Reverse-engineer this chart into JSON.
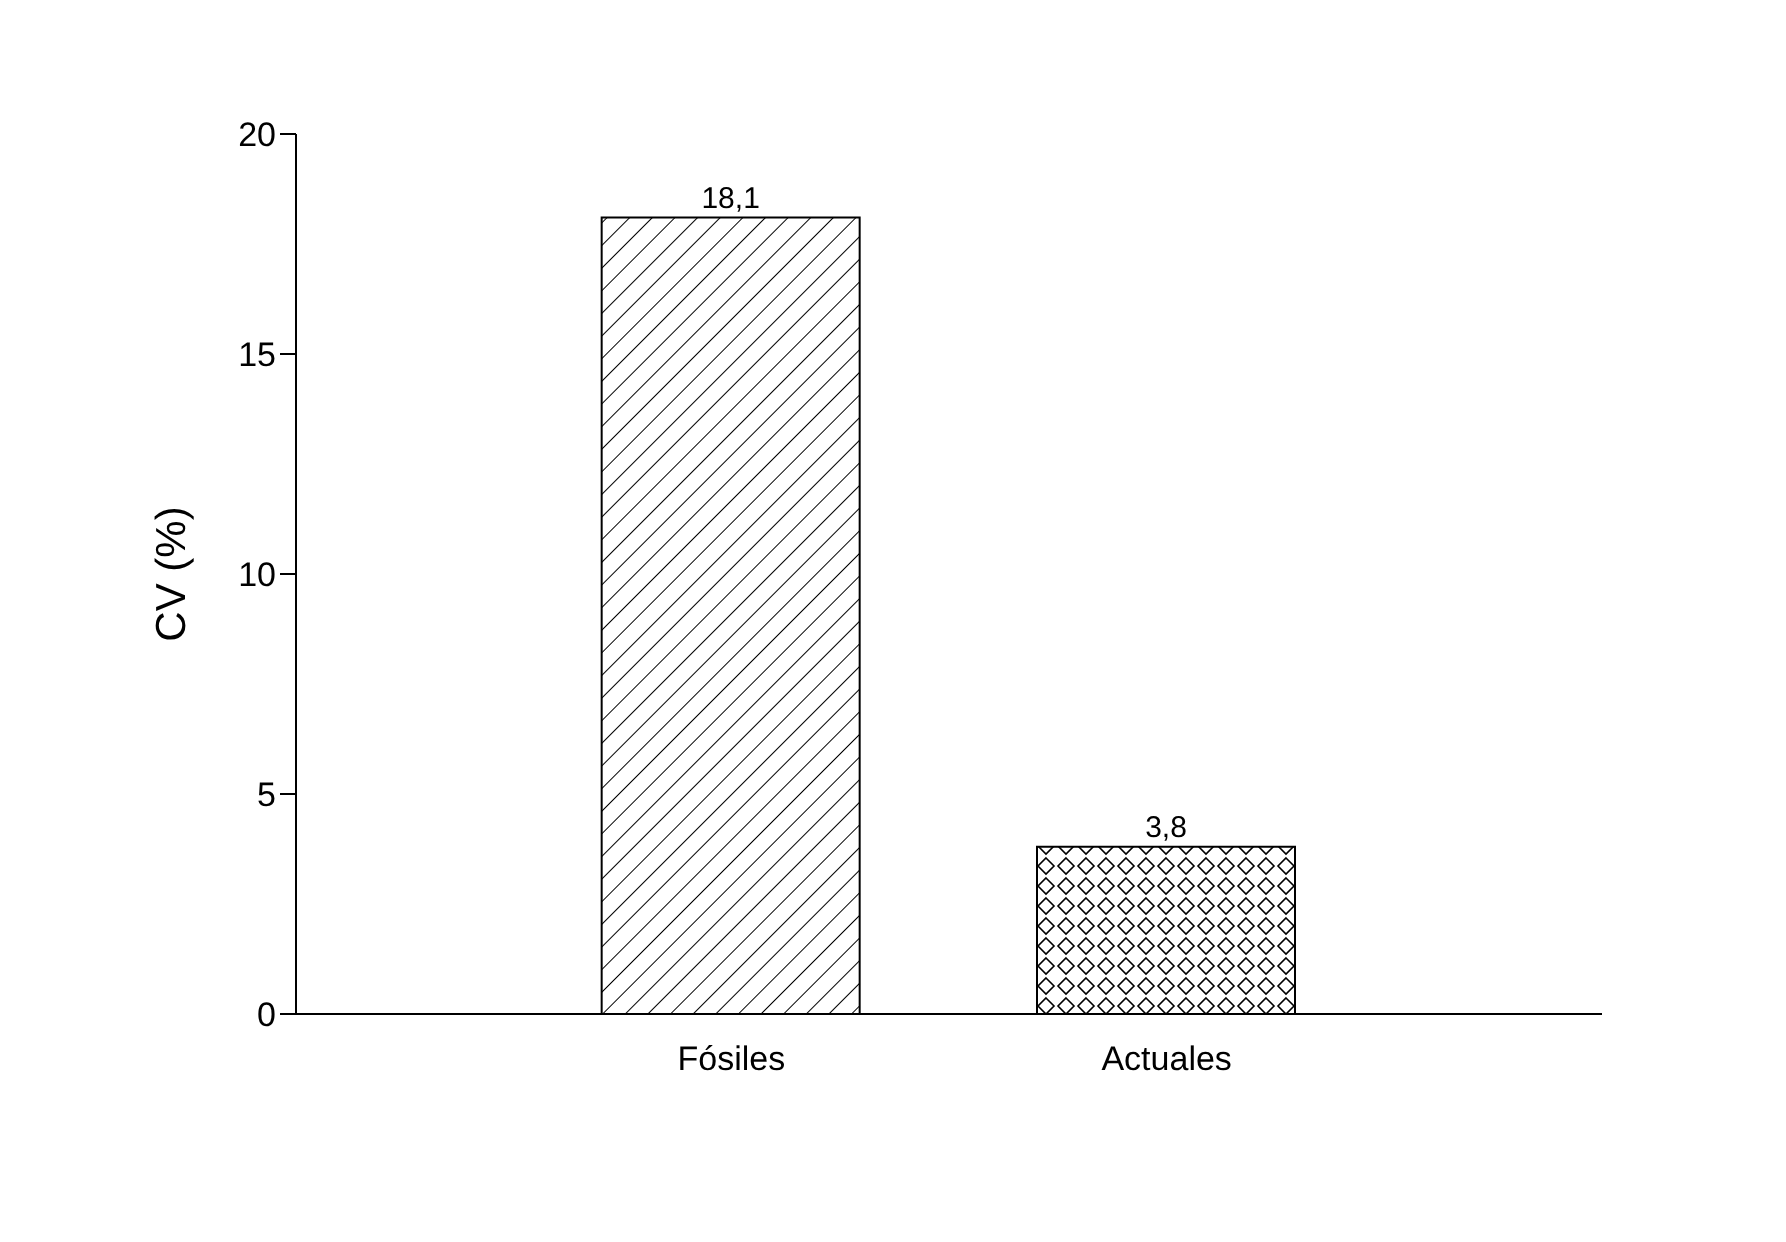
{
  "chart_data": {
    "type": "bar",
    "ylabel": "CV (%)",
    "categories": [
      "Fósiles",
      "Actuales"
    ],
    "values": [
      18.1,
      3.8
    ],
    "value_labels": [
      "18,1",
      "3,8"
    ],
    "colors": [
      "#000000",
      "#000000"
    ],
    "ylim": [
      0,
      20
    ],
    "yticks": [
      0,
      5,
      10,
      15,
      20
    ],
    "grid": false,
    "legend": false
  }
}
